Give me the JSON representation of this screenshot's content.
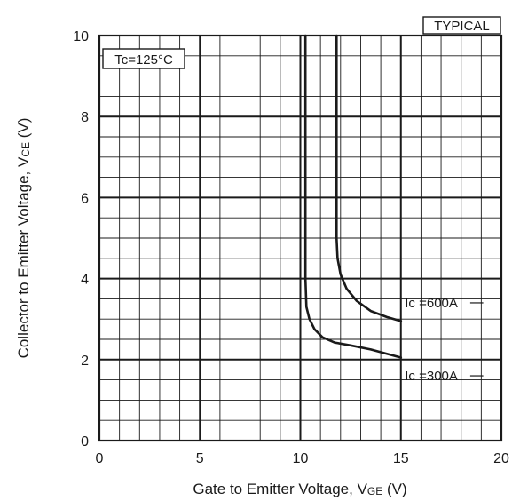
{
  "chart_data": {
    "type": "line",
    "badge": "TYPICAL",
    "condition": "Tc=125°C",
    "xlabel": {
      "main": "Gate to Emitter Voltage, V",
      "sub": "GE",
      "unit": " (V)"
    },
    "ylabel": {
      "main": "Collector to Emitter Voltage, V",
      "sub": "CE",
      "unit": " (V)"
    },
    "xlim": [
      0,
      20
    ],
    "ylim": [
      0,
      10
    ],
    "x_ticks": [
      0,
      5,
      10,
      15,
      20
    ],
    "y_ticks": [
      0,
      2,
      4,
      6,
      8,
      10
    ],
    "x_minor_step": 1,
    "y_minor_step": 0.5,
    "grid": true,
    "series": [
      {
        "name": "Ic =300A",
        "x": [
          10.25,
          10.25,
          10.3,
          10.45,
          10.7,
          11.1,
          11.7,
          12.5,
          13.5,
          15
        ],
        "y": [
          10,
          4.0,
          3.3,
          3.0,
          2.75,
          2.55,
          2.42,
          2.35,
          2.25,
          2.05
        ]
      },
      {
        "name": "Ic =600A",
        "x": [
          11.8,
          11.8,
          11.85,
          12.0,
          12.3,
          12.8,
          13.5,
          14.3,
          15
        ],
        "y": [
          10,
          5.0,
          4.5,
          4.1,
          3.75,
          3.45,
          3.2,
          3.05,
          2.95
        ]
      }
    ]
  }
}
